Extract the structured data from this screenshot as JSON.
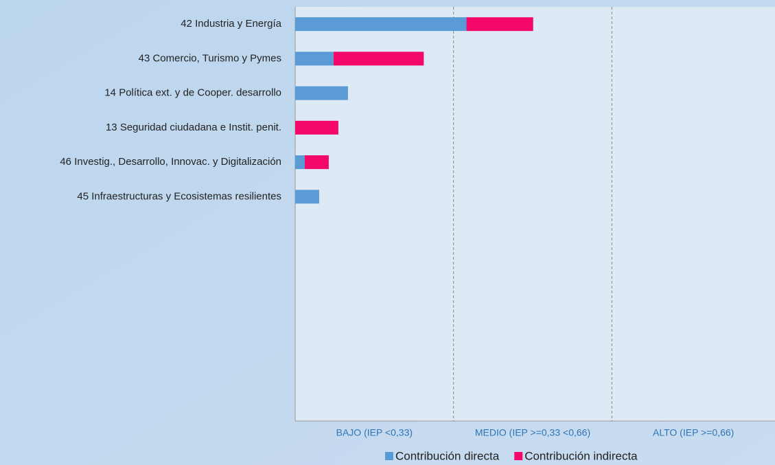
{
  "chart_data": {
    "type": "hbar_stacked",
    "categories": [
      "42 Industria y Energía",
      "43 Comercio, Turismo y Pymes",
      "14 Política ext. y de Cooper. desarrollo",
      "13 Seguridad ciudadana e Instit. penit.",
      "46 Investig., Desarrollo, Innovac. y Digitalización",
      "45 Infraestructuras y Ecosistemas resilientes",
      null,
      null,
      null,
      null,
      null,
      null
    ],
    "series": [
      {
        "name": "Contribución directa",
        "color": "#5b9bd5",
        "values": [
          0.357,
          0.08,
          0.11,
          0,
          0.02,
          0.05,
          null,
          null,
          null,
          null,
          null,
          null
        ]
      },
      {
        "name": "Contribución indirecta",
        "color": "#f5086a",
        "values": [
          0.139,
          0.188,
          0,
          0.09,
          0.05,
          0,
          null,
          null,
          null,
          null,
          null,
          null
        ]
      }
    ],
    "xlim": [
      0,
      1
    ],
    "xticks": [
      0.33,
      0.66
    ],
    "xbands": [
      "BAJO (IEP <0,33)",
      "MEDIO (IEP >=0,33 <0,66)",
      "ALTO (IEP >=0,66)"
    ],
    "legend": "bottom"
  }
}
